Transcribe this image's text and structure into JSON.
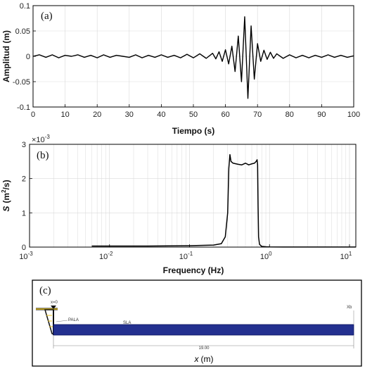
{
  "chart_data": [
    {
      "type": "line",
      "panel_label": "(a)",
      "xlabel": "Tiempo (s)",
      "ylabel": "Amplitud (m)",
      "xlim": [
        0,
        100
      ],
      "ylim": [
        -0.1,
        0.1
      ],
      "xticks": [
        "0",
        "10",
        "20",
        "30",
        "40",
        "50",
        "60",
        "70",
        "80",
        "90",
        "100"
      ],
      "yticks": [
        "0.1",
        "0.05",
        "0",
        "-0.05",
        "-0.1"
      ],
      "grid": true,
      "series": [
        {
          "x": [
            0,
            2,
            4,
            6,
            8,
            10,
            12,
            14,
            16,
            18,
            20,
            22,
            24,
            26,
            28,
            30,
            32,
            34,
            36,
            38,
            40,
            42,
            44,
            46,
            48,
            50,
            52,
            54,
            56,
            57,
            58,
            59,
            60,
            61,
            62,
            63,
            64,
            65,
            66,
            67,
            68,
            69,
            70,
            71,
            72,
            73,
            74,
            75,
            76,
            78,
            80,
            82,
            84,
            86,
            88,
            90,
            92,
            94,
            96,
            98,
            100
          ],
          "values": [
            0,
            0.003,
            -0.002,
            0.003,
            -0.003,
            0.002,
            0,
            0.003,
            -0.002,
            0.002,
            -0.003,
            0.003,
            -0.002,
            0.002,
            0,
            -0.002,
            0.003,
            -0.003,
            0.002,
            -0.002,
            0.003,
            -0.002,
            0.002,
            -0.003,
            0.004,
            -0.003,
            0.005,
            -0.004,
            0.006,
            -0.005,
            0.009,
            -0.01,
            0.013,
            -0.015,
            0.02,
            -0.03,
            0.04,
            -0.05,
            0.078,
            -0.083,
            0.06,
            -0.045,
            0.025,
            -0.01,
            0.012,
            -0.006,
            0.008,
            -0.004,
            0.005,
            -0.004,
            0.003,
            -0.003,
            0.002,
            -0.003,
            0.002,
            -0.002,
            0.003,
            -0.002,
            0.002,
            -0.002,
            0.001
          ]
        }
      ]
    },
    {
      "type": "line",
      "panel_label": "(b)",
      "xlabel": "Frequency (Hz)",
      "ylabel": "S (m2/s)",
      "ylabel_parts": [
        "S",
        "(m",
        "2",
        "/s)"
      ],
      "y_multiplier": "×10",
      "y_multiplier_exp": "-3",
      "xscale": "log",
      "xlim": [
        0.001,
        12
      ],
      "ylim": [
        0,
        3
      ],
      "xticks": [
        {
          "base": "10",
          "exp": "-3"
        },
        {
          "base": "10",
          "exp": "-2"
        },
        {
          "base": "10",
          "exp": "-1"
        },
        {
          "base": "10",
          "exp": "0"
        },
        {
          "base": "10",
          "exp": "1"
        }
      ],
      "yticks": [
        "3",
        "2",
        "1",
        "0"
      ],
      "grid": true,
      "series": [
        {
          "x": [
            0.006,
            0.01,
            0.03,
            0.1,
            0.2,
            0.25,
            0.28,
            0.3,
            0.31,
            0.32,
            0.33,
            0.35,
            0.4,
            0.45,
            0.5,
            0.55,
            0.6,
            0.65,
            0.68,
            0.7,
            0.71,
            0.72,
            0.73,
            0.75,
            0.8,
            0.9,
            1.0,
            1.5,
            2,
            5,
            10,
            12
          ],
          "values": [
            0.03,
            0.03,
            0.03,
            0.04,
            0.06,
            0.1,
            0.3,
            1.0,
            2.3,
            2.7,
            2.5,
            2.45,
            2.42,
            2.4,
            2.45,
            2.4,
            2.43,
            2.45,
            2.5,
            2.55,
            2.4,
            1.2,
            0.3,
            0.08,
            0.02,
            0.01,
            0.005,
            0.003,
            0.003,
            0.003,
            0.003,
            0.003
          ]
        }
      ]
    }
  ],
  "diagram": {
    "panel_label": "(c)",
    "origin_label": "x=0",
    "paddle_label": "PALA",
    "slope_label": "SLA",
    "end_label": "Xb",
    "dimension_label": "19.00",
    "axis_label_var": "x",
    "axis_label_unit": "(m)"
  },
  "colors": {
    "line": "#000000",
    "grid": "#d9d9d9",
    "channel_fill": "#23308f",
    "paddle_yellow": "#e8c21a"
  }
}
